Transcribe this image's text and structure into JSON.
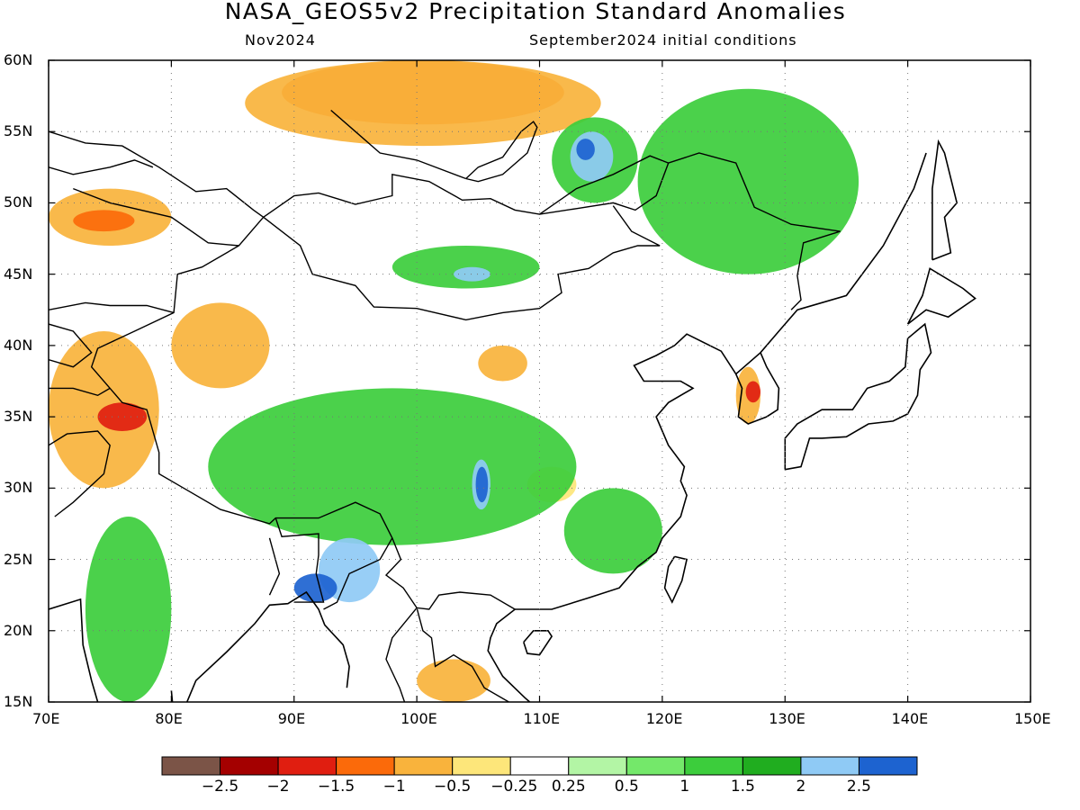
{
  "header": {
    "title": "NASA_GEOS5v2 Precipitation Standard Anomalies",
    "target_month": "Nov2024",
    "init": "September2024 initial conditions"
  },
  "axes": {
    "lat_labels": [
      "60N",
      "55N",
      "50N",
      "45N",
      "40N",
      "35N",
      "30N",
      "25N",
      "20N",
      "15N"
    ],
    "lat_values": [
      60,
      55,
      50,
      45,
      40,
      35,
      30,
      25,
      20,
      15
    ],
    "lon_labels": [
      "70E",
      "80E",
      "90E",
      "100E",
      "110E",
      "120E",
      "130E",
      "140E",
      "150E"
    ],
    "lon_values": [
      70,
      80,
      90,
      100,
      110,
      120,
      130,
      140,
      150
    ],
    "lon_range": [
      70,
      150
    ],
    "lat_range": [
      15,
      60
    ]
  },
  "colorbar": {
    "labels": [
      "−2.5",
      "−2",
      "−1.5",
      "−1",
      "−0.5",
      "−0.25",
      "0.25",
      "0.5",
      "1",
      "1.5",
      "2",
      "2.5"
    ],
    "colors": [
      "#7b5447",
      "#a40000",
      "#e01e10",
      "#fb6a0a",
      "#f9b33c",
      "#fde67a",
      "#ffffff",
      "#b3f5a5",
      "#74e86a",
      "#3ccd3c",
      "#20ad1f",
      "#8fcaf5",
      "#1d63d0"
    ]
  },
  "anomaly_regions": [
    {
      "name": "Central Siberia dry",
      "color": "#fb6a0a",
      "lon": [
        89,
        112
      ],
      "lat": [
        55.5,
        60
      ]
    },
    {
      "name": "Siberia moderate dry",
      "color": "#f9b33c",
      "lon": [
        86,
        115
      ],
      "lat": [
        54,
        60
      ]
    },
    {
      "name": "Kazakhstan dry",
      "color": "#f9b33c",
      "lon": [
        70,
        80
      ],
      "lat": [
        47,
        51
      ]
    },
    {
      "name": "Kazakhstan core dry",
      "color": "#fb6a0a",
      "lon": [
        72,
        77
      ],
      "lat": [
        48,
        49.5
      ]
    },
    {
      "name": "Pamir dry",
      "color": "#f9b33c",
      "lon": [
        70,
        79
      ],
      "lat": [
        30,
        41
      ]
    },
    {
      "name": "Kashmir core dry",
      "color": "#e01e10",
      "lon": [
        74,
        78
      ],
      "lat": [
        34,
        36
      ]
    },
    {
      "name": "Tarim dry",
      "color": "#f9b33c",
      "lon": [
        80,
        88
      ],
      "lat": [
        37,
        43
      ]
    },
    {
      "name": "Loess dry",
      "color": "#f9b33c",
      "lon": [
        105,
        109
      ],
      "lat": [
        37.5,
        40
      ]
    },
    {
      "name": "Korea dry",
      "color": "#f9b33c",
      "lon": [
        126,
        128
      ],
      "lat": [
        34.5,
        38.5
      ]
    },
    {
      "name": "Korea core dry",
      "color": "#e01e10",
      "lon": [
        126.8,
        128
      ],
      "lat": [
        36,
        37.5
      ]
    },
    {
      "name": "Indochina dry",
      "color": "#f9b33c",
      "lon": [
        100,
        106
      ],
      "lat": [
        15,
        18
      ]
    },
    {
      "name": "South China dry spot",
      "color": "#fde67a",
      "lon": [
        109,
        113
      ],
      "lat": [
        29,
        31.5
      ]
    },
    {
      "name": "Mongolia wet",
      "color": "#3ccd3c",
      "lon": [
        98,
        110
      ],
      "lat": [
        44,
        47
      ]
    },
    {
      "name": "Mongolia core wet",
      "color": "#8fcaf5",
      "lon": [
        103,
        106
      ],
      "lat": [
        44.5,
        45.5
      ]
    },
    {
      "name": "Baikal wet",
      "color": "#3ccd3c",
      "lon": [
        111,
        118
      ],
      "lat": [
        50,
        56
      ]
    },
    {
      "name": "Baikal core wet",
      "color": "#8fcaf5",
      "lon": [
        112.5,
        116
      ],
      "lat": [
        51.5,
        55
      ]
    },
    {
      "name": "Baikal center",
      "color": "#1d63d0",
      "lon": [
        113,
        114.5
      ],
      "lat": [
        53,
        54.5
      ]
    },
    {
      "name": "Manchuria wet",
      "color": "#3ccd3c",
      "lon": [
        118,
        136
      ],
      "lat": [
        45,
        58
      ]
    },
    {
      "name": "Tibet wet",
      "color": "#3ccd3c",
      "lon": [
        83,
        113
      ],
      "lat": [
        26,
        37
      ]
    },
    {
      "name": "Sichuan core wet",
      "color": "#8fcaf5",
      "lon": [
        104.5,
        106
      ],
      "lat": [
        28.5,
        32
      ]
    },
    {
      "name": "Sichuan center",
      "color": "#1d63d0",
      "lon": [
        104.8,
        105.8
      ],
      "lat": [
        29,
        31.5
      ]
    },
    {
      "name": "Bangladesh wet",
      "color": "#8fcaf5",
      "lon": [
        92,
        97
      ],
      "lat": [
        22,
        26.5
      ]
    },
    {
      "name": "Bangladesh core wet",
      "color": "#1d63d0",
      "lon": [
        90,
        93.5
      ],
      "lat": [
        22,
        24
      ]
    },
    {
      "name": "SE China wet",
      "color": "#3ccd3c",
      "lon": [
        112,
        120
      ],
      "lat": [
        24,
        30
      ]
    },
    {
      "name": "India wet",
      "color": "#3ccd3c",
      "lon": [
        73,
        80
      ],
      "lat": [
        15,
        28
      ]
    }
  ]
}
